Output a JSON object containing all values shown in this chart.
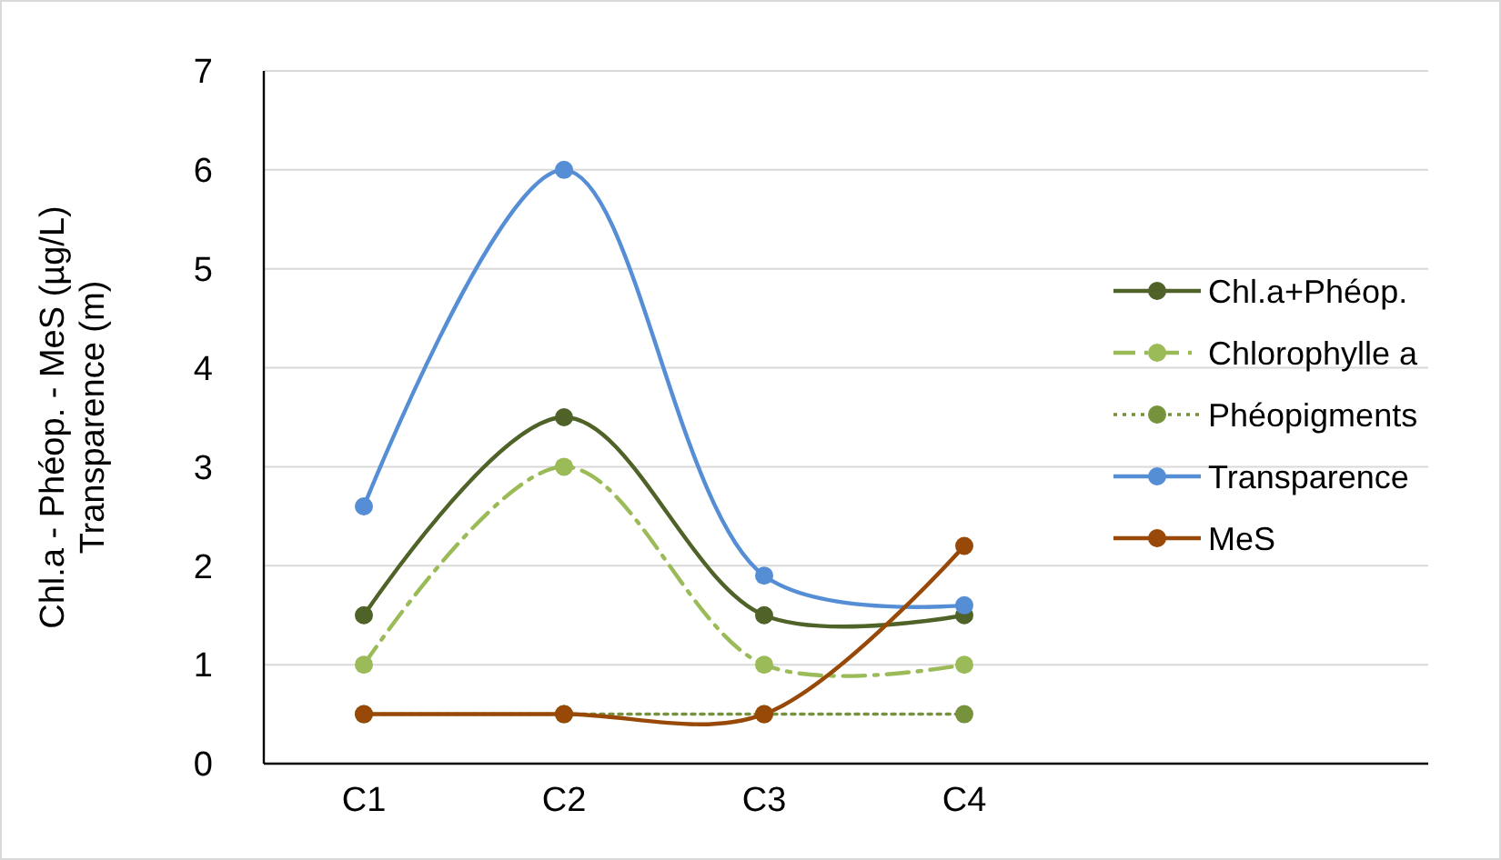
{
  "chart_data": {
    "type": "line",
    "ylabel": "Chl.a - Phéop. - MeS (µg/L)\nTransparence (m)",
    "categories": [
      "C1",
      "C2",
      "C3",
      "C4"
    ],
    "series": [
      {
        "name": "Chl.a+Phéop.",
        "color": "#4f6228",
        "values": [
          1.5,
          3.5,
          1.5,
          1.5
        ],
        "line_style": "solid"
      },
      {
        "name": "Chlorophylle a",
        "color": "#9bbb59",
        "values": [
          1,
          3,
          1,
          1
        ],
        "line_style": "dashed"
      },
      {
        "name": "Phéopigments",
        "color": "#76923c",
        "values": [
          0.5,
          0.5,
          0.5,
          0.5
        ],
        "line_style": "dotted"
      },
      {
        "name": "Transparence",
        "color": "#558ed5",
        "values": [
          2.6,
          6,
          1.9,
          1.6
        ],
        "line_style": "solid"
      },
      {
        "name": "MeS",
        "color": "#984807",
        "values": [
          0.5,
          0.5,
          0.5,
          2.2
        ],
        "line_style": "solid"
      }
    ],
    "ylim": [
      0,
      7
    ],
    "yticks": [
      0,
      1,
      2,
      3,
      4,
      5,
      6,
      7
    ],
    "grid": "y",
    "legend": "right",
    "marker": "circle"
  }
}
